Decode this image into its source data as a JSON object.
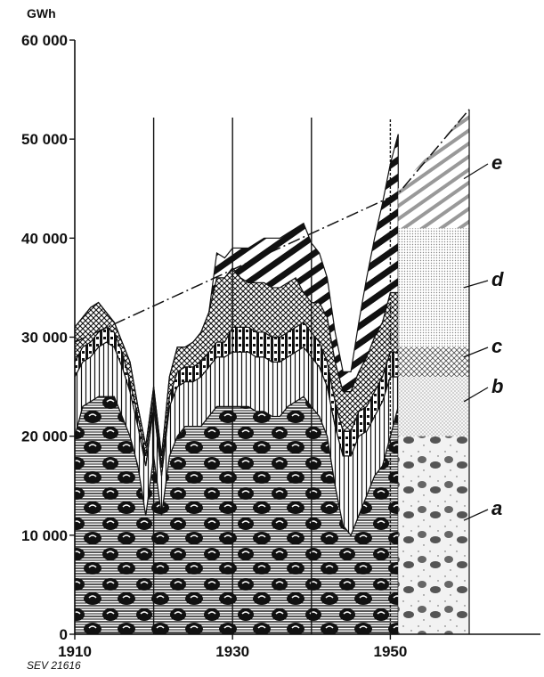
{
  "chart_data": {
    "type": "area",
    "stacked": true,
    "unit_label": "GWh",
    "y_ticks": [
      "0",
      "10 000",
      "20 000",
      "30 000",
      "40 000",
      "50 000",
      "60 000"
    ],
    "x_ticks": [
      "1910",
      "1930",
      "1950"
    ],
    "reference": "SEV 21616",
    "ylim": [
      0,
      60000
    ],
    "xlim": [
      1910,
      1963
    ],
    "x": [
      1910,
      1911,
      1912,
      1913,
      1914,
      1915,
      1916,
      1917,
      1918,
      1919,
      1920,
      1921,
      1922,
      1923,
      1924,
      1925,
      1926,
      1927,
      1928,
      1929,
      1930,
      1931,
      1932,
      1933,
      1934,
      1935,
      1936,
      1937,
      1938,
      1939,
      1940,
      1941,
      1942,
      1943,
      1944,
      1945,
      1946,
      1947,
      1948,
      1949,
      1950,
      1951
    ],
    "series": [
      {
        "name": "a",
        "values": [
          20000,
          23000,
          23500,
          24000,
          24000,
          24000,
          22000,
          20000,
          17000,
          12000,
          18000,
          12000,
          18000,
          20000,
          21000,
          21000,
          21000,
          22000,
          23000,
          23000,
          23000,
          23000,
          23000,
          22500,
          22500,
          22000,
          22000,
          23000,
          23500,
          24000,
          23000,
          22000,
          20000,
          15000,
          11000,
          10000,
          12000,
          14000,
          16000,
          17000,
          20000,
          23000
        ]
      },
      {
        "name": "b",
        "values": [
          6000,
          4500,
          4500,
          5000,
          5500,
          5000,
          5000,
          4500,
          4000,
          5000,
          5000,
          4000,
          5000,
          5000,
          4500,
          4500,
          5000,
          5000,
          5000,
          5000,
          5500,
          5500,
          5500,
          5500,
          5500,
          5500,
          5500,
          5000,
          5000,
          5000,
          5000,
          5000,
          5000,
          6000,
          7000,
          8000,
          8000,
          6500,
          6000,
          6500,
          6000,
          3000
        ]
      },
      {
        "name": "c",
        "values": [
          1500,
          1500,
          1500,
          1500,
          1500,
          1500,
          1500,
          1000,
          1000,
          1000,
          1000,
          1000,
          1000,
          1500,
          1500,
          1500,
          1500,
          1500,
          1500,
          1500,
          2500,
          2500,
          2500,
          2500,
          2500,
          2500,
          2500,
          2500,
          2500,
          2500,
          2500,
          2500,
          2500,
          2500,
          2500,
          2500,
          2500,
          2500,
          2500,
          2500,
          2500,
          2500
        ]
      },
      {
        "name": "d",
        "values": [
          3500,
          3000,
          3500,
          3000,
          1500,
          1000,
          1000,
          2000,
          1000,
          1000,
          1000,
          1000,
          2000,
          2500,
          2000,
          2500,
          3000,
          4000,
          6500,
          6500,
          6000,
          5000,
          4500,
          5000,
          5000,
          5000,
          5000,
          5000,
          5000,
          3000,
          3000,
          4000,
          4500,
          4000,
          4000,
          4000,
          4000,
          5000,
          5500,
          5500,
          6000,
          6000
        ]
      },
      {
        "name": "e",
        "values": [
          0,
          0,
          0,
          0,
          0,
          0,
          0,
          0,
          0,
          0,
          0,
          0,
          0,
          0,
          0,
          0,
          0,
          0,
          2500,
          2000,
          2000,
          3000,
          3500,
          4000,
          4500,
          5000,
          5000,
          5000,
          5000,
          7000,
          6000,
          5000,
          4000,
          3000,
          2000,
          2000,
          5000,
          8000,
          10000,
          12000,
          13000,
          16000
        ]
      }
    ],
    "projection": {
      "x": [
        1951,
        1960
      ],
      "series": [
        {
          "name": "a",
          "values": [
            20000,
            20000
          ]
        },
        {
          "name": "b",
          "values": [
            6000,
            6000
          ]
        },
        {
          "name": "c",
          "values": [
            3000,
            3000
          ]
        },
        {
          "name": "d",
          "values": [
            12000,
            12000
          ]
        },
        {
          "name": "e",
          "values": [
            4000,
            12000
          ]
        }
      ]
    },
    "trend_line": {
      "x": [
        1910,
        1951,
        1960
      ],
      "values": [
        29500,
        44500,
        53000
      ]
    },
    "vertical_lines_x": [
      1920,
      1930,
      1940,
      1950
    ],
    "band_labels": [
      "a",
      "b",
      "c",
      "d",
      "e"
    ],
    "grid": false,
    "legend": "none"
  }
}
